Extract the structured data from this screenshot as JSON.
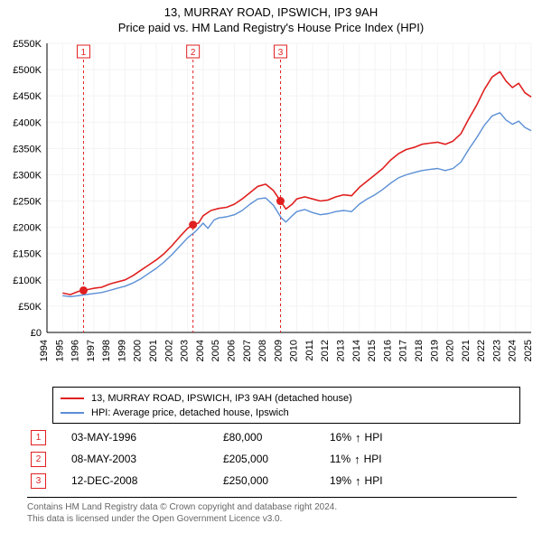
{
  "title": "13, MURRAY ROAD, IPSWICH, IP3 9AH",
  "subtitle": "Price paid vs. HM Land Registry's House Price Index (HPI)",
  "chart": {
    "type": "line",
    "background_color": "#ffffff",
    "grid_color": "#f3f3f3",
    "axis_color": "#000000",
    "font_family": "Arial",
    "tick_fontsize": 11,
    "x": {
      "years": [
        1994,
        1995,
        1996,
        1997,
        1998,
        1999,
        2000,
        2001,
        2002,
        2003,
        2004,
        2005,
        2006,
        2007,
        2008,
        2009,
        2010,
        2011,
        2012,
        2013,
        2014,
        2015,
        2016,
        2017,
        2018,
        2019,
        2020,
        2021,
        2022,
        2023,
        2024,
        2025
      ],
      "xlim": [
        1994,
        2025
      ],
      "tick_rotation": -90
    },
    "y": {
      "label_prefix": "£",
      "label_suffix": "K",
      "ylim": [
        0,
        550
      ],
      "tick_step": 50,
      "ticks": [
        0,
        50,
        100,
        150,
        200,
        250,
        300,
        350,
        400,
        450,
        500,
        550
      ]
    },
    "series": [
      {
        "name": "13, MURRAY ROAD, IPSWICH, IP3 9AH (detached house)",
        "color": "#e02020",
        "line_width": 1.6,
        "points": [
          [
            1995.0,
            75
          ],
          [
            1995.5,
            72
          ],
          [
            1996.0,
            78
          ],
          [
            1996.34,
            80
          ],
          [
            1997.0,
            84
          ],
          [
            1997.5,
            86
          ],
          [
            1998.0,
            92
          ],
          [
            1998.5,
            96
          ],
          [
            1999.0,
            100
          ],
          [
            1999.5,
            108
          ],
          [
            2000.0,
            118
          ],
          [
            2000.5,
            128
          ],
          [
            2001.0,
            138
          ],
          [
            2001.5,
            150
          ],
          [
            2002.0,
            165
          ],
          [
            2002.5,
            182
          ],
          [
            2003.0,
            198
          ],
          [
            2003.35,
            205
          ],
          [
            2003.7,
            208
          ],
          [
            2004.0,
            222
          ],
          [
            2004.5,
            232
          ],
          [
            2005.0,
            236
          ],
          [
            2005.5,
            238
          ],
          [
            2006.0,
            244
          ],
          [
            2006.5,
            254
          ],
          [
            2007.0,
            266
          ],
          [
            2007.5,
            278
          ],
          [
            2008.0,
            282
          ],
          [
            2008.5,
            270
          ],
          [
            2008.95,
            250
          ],
          [
            2009.3,
            235
          ],
          [
            2009.7,
            244
          ],
          [
            2010.0,
            254
          ],
          [
            2010.5,
            258
          ],
          [
            2011.0,
            254
          ],
          [
            2011.5,
            250
          ],
          [
            2012.0,
            252
          ],
          [
            2012.5,
            258
          ],
          [
            2013.0,
            262
          ],
          [
            2013.5,
            260
          ],
          [
            2014.0,
            276
          ],
          [
            2014.5,
            288
          ],
          [
            2015.0,
            300
          ],
          [
            2015.5,
            312
          ],
          [
            2016.0,
            328
          ],
          [
            2016.5,
            340
          ],
          [
            2017.0,
            348
          ],
          [
            2017.5,
            352
          ],
          [
            2018.0,
            358
          ],
          [
            2018.5,
            360
          ],
          [
            2019.0,
            362
          ],
          [
            2019.5,
            358
          ],
          [
            2020.0,
            364
          ],
          [
            2020.5,
            378
          ],
          [
            2021.0,
            406
          ],
          [
            2021.5,
            432
          ],
          [
            2022.0,
            462
          ],
          [
            2022.5,
            486
          ],
          [
            2023.0,
            496
          ],
          [
            2023.4,
            478
          ],
          [
            2023.8,
            466
          ],
          [
            2024.2,
            474
          ],
          [
            2024.6,
            456
          ],
          [
            2025.0,
            448
          ]
        ]
      },
      {
        "name": "HPI: Average price, detached house, Ipswich",
        "color": "#5b8fd6",
        "line_width": 1.4,
        "points": [
          [
            1995.0,
            70
          ],
          [
            1995.5,
            68
          ],
          [
            1996.0,
            70
          ],
          [
            1996.5,
            72
          ],
          [
            1997.0,
            74
          ],
          [
            1997.5,
            76
          ],
          [
            1998.0,
            80
          ],
          [
            1998.5,
            84
          ],
          [
            1999.0,
            88
          ],
          [
            1999.5,
            94
          ],
          [
            2000.0,
            102
          ],
          [
            2000.5,
            112
          ],
          [
            2001.0,
            122
          ],
          [
            2001.5,
            134
          ],
          [
            2002.0,
            148
          ],
          [
            2002.5,
            164
          ],
          [
            2003.0,
            180
          ],
          [
            2003.5,
            192
          ],
          [
            2004.0,
            208
          ],
          [
            2004.3,
            198
          ],
          [
            2004.7,
            214
          ],
          [
            2005.0,
            218
          ],
          [
            2005.5,
            220
          ],
          [
            2006.0,
            224
          ],
          [
            2006.5,
            232
          ],
          [
            2007.0,
            244
          ],
          [
            2007.5,
            254
          ],
          [
            2008.0,
            256
          ],
          [
            2008.5,
            242
          ],
          [
            2009.0,
            218
          ],
          [
            2009.3,
            210
          ],
          [
            2009.7,
            222
          ],
          [
            2010.0,
            230
          ],
          [
            2010.5,
            234
          ],
          [
            2011.0,
            228
          ],
          [
            2011.5,
            224
          ],
          [
            2012.0,
            226
          ],
          [
            2012.5,
            230
          ],
          [
            2013.0,
            232
          ],
          [
            2013.5,
            230
          ],
          [
            2014.0,
            244
          ],
          [
            2014.5,
            254
          ],
          [
            2015.0,
            262
          ],
          [
            2015.5,
            272
          ],
          [
            2016.0,
            284
          ],
          [
            2016.5,
            294
          ],
          [
            2017.0,
            300
          ],
          [
            2017.5,
            304
          ],
          [
            2018.0,
            308
          ],
          [
            2018.5,
            310
          ],
          [
            2019.0,
            312
          ],
          [
            2019.5,
            308
          ],
          [
            2020.0,
            312
          ],
          [
            2020.5,
            324
          ],
          [
            2021.0,
            348
          ],
          [
            2021.5,
            370
          ],
          [
            2022.0,
            394
          ],
          [
            2022.5,
            412
          ],
          [
            2023.0,
            418
          ],
          [
            2023.4,
            404
          ],
          [
            2023.8,
            396
          ],
          [
            2024.2,
            402
          ],
          [
            2024.6,
            390
          ],
          [
            2025.0,
            384
          ]
        ]
      }
    ],
    "sale_markers": {
      "color": "#e02020",
      "badge_border": "#e02020",
      "badge_fill": "#ffffff",
      "vertical_line_dash": "3,3",
      "dot_radius": 4.5,
      "items": [
        {
          "n": "1",
          "x": 1996.34,
          "y": 80
        },
        {
          "n": "2",
          "x": 2003.35,
          "y": 205
        },
        {
          "n": "3",
          "x": 2008.95,
          "y": 250
        }
      ]
    }
  },
  "legend": {
    "items": [
      {
        "color": "#e02020",
        "label": "13, MURRAY ROAD, IPSWICH, IP3 9AH (detached house)"
      },
      {
        "color": "#5b8fd6",
        "label": "HPI: Average price, detached house, Ipswich"
      }
    ]
  },
  "sales": {
    "badge_color": "#e02020",
    "arrow": "↑",
    "hpi_suffix": "HPI",
    "rows": [
      {
        "n": "1",
        "date": "03-MAY-1996",
        "price": "£80,000",
        "pct": "16%"
      },
      {
        "n": "2",
        "date": "08-MAY-2003",
        "price": "£205,000",
        "pct": "11%"
      },
      {
        "n": "3",
        "date": "12-DEC-2008",
        "price": "£250,000",
        "pct": "19%"
      }
    ]
  },
  "footer": {
    "line1": "Contains HM Land Registry data © Crown copyright and database right 2024.",
    "line2": "This data is licensed under the Open Government Licence v3.0."
  }
}
